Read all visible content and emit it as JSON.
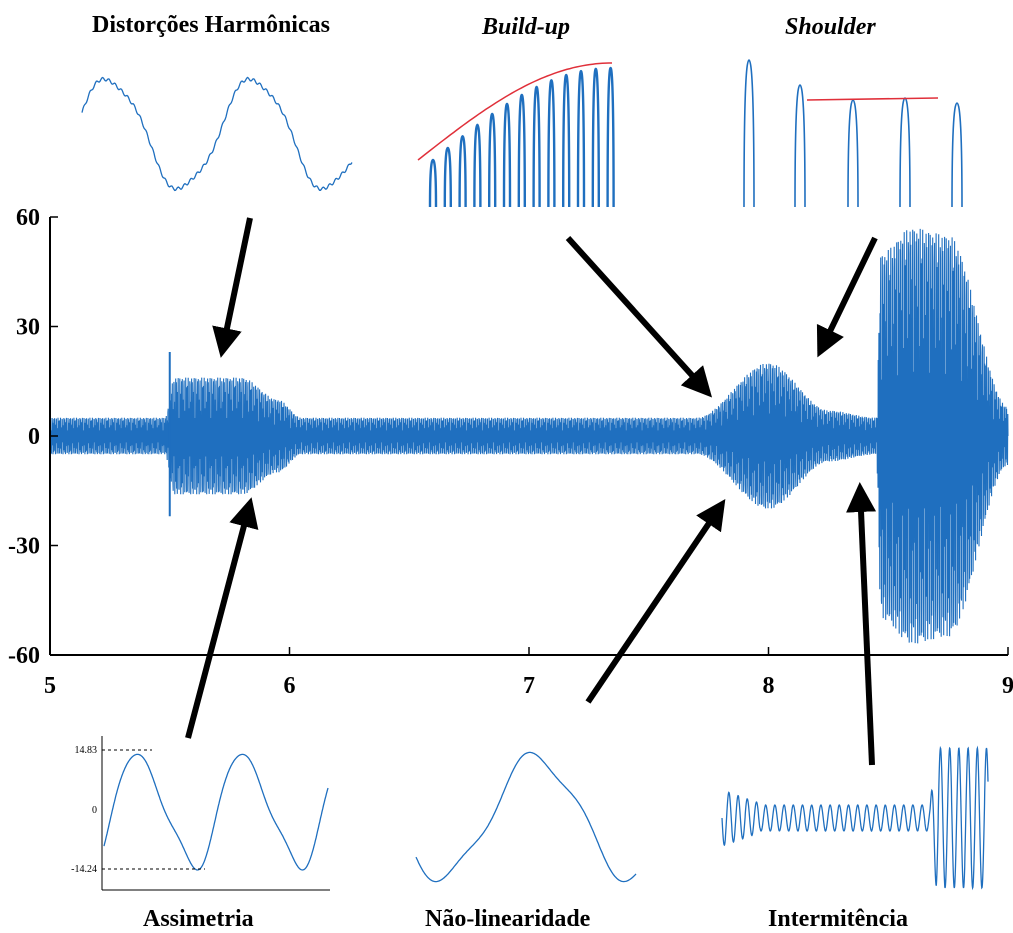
{
  "chart_data": {
    "type": "line",
    "main": {
      "xlim": [
        5,
        9
      ],
      "ylim": [
        -60,
        60
      ],
      "xticks": [
        "5",
        "6",
        "7",
        "8",
        "9"
      ],
      "yticks": [
        "60",
        "30",
        "0",
        "-30",
        "-60"
      ],
      "series_color": "#1f6fbf",
      "envelope": [
        {
          "x": 5.0,
          "amp": 5
        },
        {
          "x": 5.48,
          "amp": 5
        },
        {
          "x": 5.52,
          "amp": 16
        },
        {
          "x": 5.8,
          "amp": 16
        },
        {
          "x": 5.95,
          "amp": 10
        },
        {
          "x": 6.05,
          "amp": 5
        },
        {
          "x": 7.7,
          "amp": 5
        },
        {
          "x": 8.0,
          "amp": 20
        },
        {
          "x": 8.25,
          "amp": 7
        },
        {
          "x": 8.45,
          "amp": 5
        },
        {
          "x": 8.47,
          "amp": 50
        },
        {
          "x": 8.6,
          "amp": 57
        },
        {
          "x": 8.75,
          "amp": 55
        },
        {
          "x": 9.0,
          "amp": 8
        }
      ],
      "spikes": [
        {
          "x": 5.5,
          "y": 23
        },
        {
          "x": 5.5,
          "y": -22
        }
      ]
    },
    "insets": {
      "distortion": {
        "title": "Distorções Harmônicas"
      },
      "buildup": {
        "title": "Build-up",
        "annotation_color": "#e0303a"
      },
      "shoulder": {
        "title": "Shoulder",
        "annotation_color": "#e0303a"
      },
      "asymmetry": {
        "title": "Assimetria",
        "yticks": [
          "14.83",
          "0",
          "-14.24"
        ],
        "max": 14.83,
        "min": -14.24
      },
      "nonlinearity": {
        "title": "Não-linearidade"
      },
      "intermittency": {
        "title": "Intermitência"
      }
    }
  }
}
